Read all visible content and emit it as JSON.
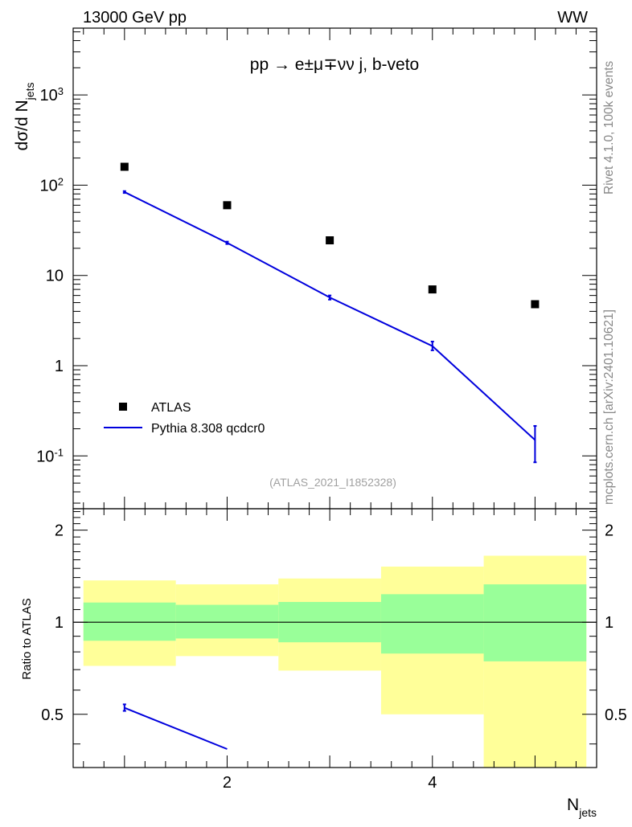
{
  "header": {
    "left": "13000 GeV pp",
    "right": "WW"
  },
  "side_labels": {
    "rivet": "Rivet 4.1.0,  100k events",
    "mcplots": "mcplots.cern.ch [arXiv:2401.10621]"
  },
  "chart_data": [
    {
      "type": "scatter",
      "title": "pp → e±μ∓νν j, b-veto",
      "watermark": "(ATLAS_2021_I1852328)",
      "ylabel": "dσ/d N{jets}",
      "yscale": "log",
      "ylim": [
        0.026,
        5500
      ],
      "xlim": [
        0.5,
        5.6
      ],
      "y_ticks": [
        "10^-1",
        "1",
        "10",
        "10^2",
        "10^3"
      ],
      "legend_position": "bottom-left",
      "series": [
        {
          "name": "ATLAS",
          "kind": "markers",
          "color": "#000000",
          "points": [
            {
              "x": 1,
              "y": 160
            },
            {
              "x": 2,
              "y": 60
            },
            {
              "x": 3,
              "y": 24.5
            },
            {
              "x": 4,
              "y": 7.0
            },
            {
              "x": 5,
              "y": 4.8
            }
          ]
        },
        {
          "name": "Pythia 8.308 qcdcr0",
          "kind": "line",
          "color": "#0000dd",
          "points": [
            {
              "x": 1,
              "y": 84,
              "err_lo": 82,
              "err_hi": 86
            },
            {
              "x": 2,
              "y": 23,
              "err_lo": 22.3,
              "err_hi": 23.7
            },
            {
              "x": 3,
              "y": 5.7,
              "err_lo": 5.4,
              "err_hi": 6.0
            },
            {
              "x": 4,
              "y": 1.65,
              "err_lo": 1.48,
              "err_hi": 1.85
            },
            {
              "x": 5,
              "y": 0.15,
              "err_lo": 0.085,
              "err_hi": 0.215
            }
          ]
        }
      ]
    },
    {
      "type": "area",
      "ylabel": "Ratio to ATLAS",
      "xlabel": "N{jets}",
      "yscale": "log",
      "ylim": [
        0.335,
        2.35
      ],
      "xlim": [
        0.5,
        5.6
      ],
      "x_ticks": [
        "2",
        "4"
      ],
      "y_ticks": [
        "0.5",
        "1",
        "2"
      ],
      "reference_line": 1,
      "bands": [
        {
          "x_lo": 0.6,
          "x_hi": 1.5,
          "green_lo": 0.87,
          "green_hi": 1.16,
          "yellow_lo": 0.72,
          "yellow_hi": 1.37
        },
        {
          "x_lo": 1.5,
          "x_hi": 2.5,
          "green_lo": 0.885,
          "green_hi": 1.14,
          "yellow_lo": 0.775,
          "yellow_hi": 1.33
        },
        {
          "x_lo": 2.5,
          "x_hi": 3.5,
          "green_lo": 0.86,
          "green_hi": 1.165,
          "yellow_lo": 0.695,
          "yellow_hi": 1.39
        },
        {
          "x_lo": 3.5,
          "x_hi": 4.5,
          "green_lo": 0.79,
          "green_hi": 1.235,
          "yellow_lo": 0.5,
          "yellow_hi": 1.52
        },
        {
          "x_lo": 4.5,
          "x_hi": 5.5,
          "green_lo": 0.745,
          "green_hi": 1.33,
          "yellow_lo": 0.335,
          "yellow_hi": 1.65
        }
      ],
      "series": [
        {
          "name": "Pythia 8.308 qcdcr0 / ATLAS",
          "color": "#0000dd",
          "points": [
            {
              "x": 1,
              "y": 0.525,
              "err_lo": 0.513,
              "err_hi": 0.539
            },
            {
              "x": 2,
              "y": 0.385
            }
          ]
        }
      ]
    }
  ]
}
